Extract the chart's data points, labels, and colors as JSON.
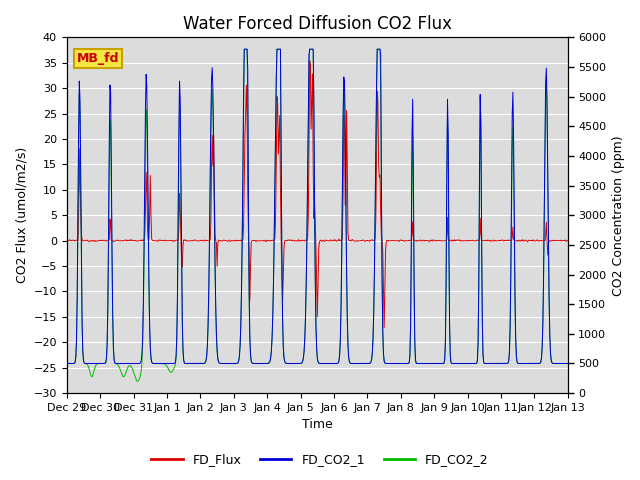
{
  "title": "Water Forced Diffusion CO2 Flux",
  "xlabel": "Time",
  "ylabel_left": "CO2 Flux (umol/m2/s)",
  "ylabel_right": "CO2 Concentration (ppm)",
  "ylim_left": [
    -30,
    40
  ],
  "ylim_right": [
    0,
    6000
  ],
  "yticks_left": [
    -30,
    -25,
    -20,
    -15,
    -10,
    -5,
    0,
    5,
    10,
    15,
    20,
    25,
    30,
    35,
    40
  ],
  "yticks_right": [
    0,
    500,
    1000,
    1500,
    2000,
    2500,
    3000,
    3500,
    4000,
    4500,
    5000,
    5500,
    6000
  ],
  "legend_entries": [
    "FD_Flux",
    "FD_CO2_1",
    "FD_CO2_2"
  ],
  "legend_colors": [
    "#dd0000",
    "#0000dd",
    "#00bb00"
  ],
  "annotation_text": "MB_fd",
  "background_color": "#dcdcdc",
  "title_fontsize": 12,
  "label_fontsize": 9,
  "tick_fontsize": 8,
  "grid_color": "#ffffff",
  "xtick_labels": [
    "Dec 29",
    "Dec 30",
    "Dec 31",
    "Jan 1",
    "Jan 2",
    "Jan 3",
    "Jan 4",
    "Jan 5",
    "Jan 6",
    "Jan 7",
    "Jan 8",
    "Jan 9",
    "Jan 10",
    "Jan 11",
    "Jan 12",
    "Jan 13"
  ],
  "num_days": 15
}
